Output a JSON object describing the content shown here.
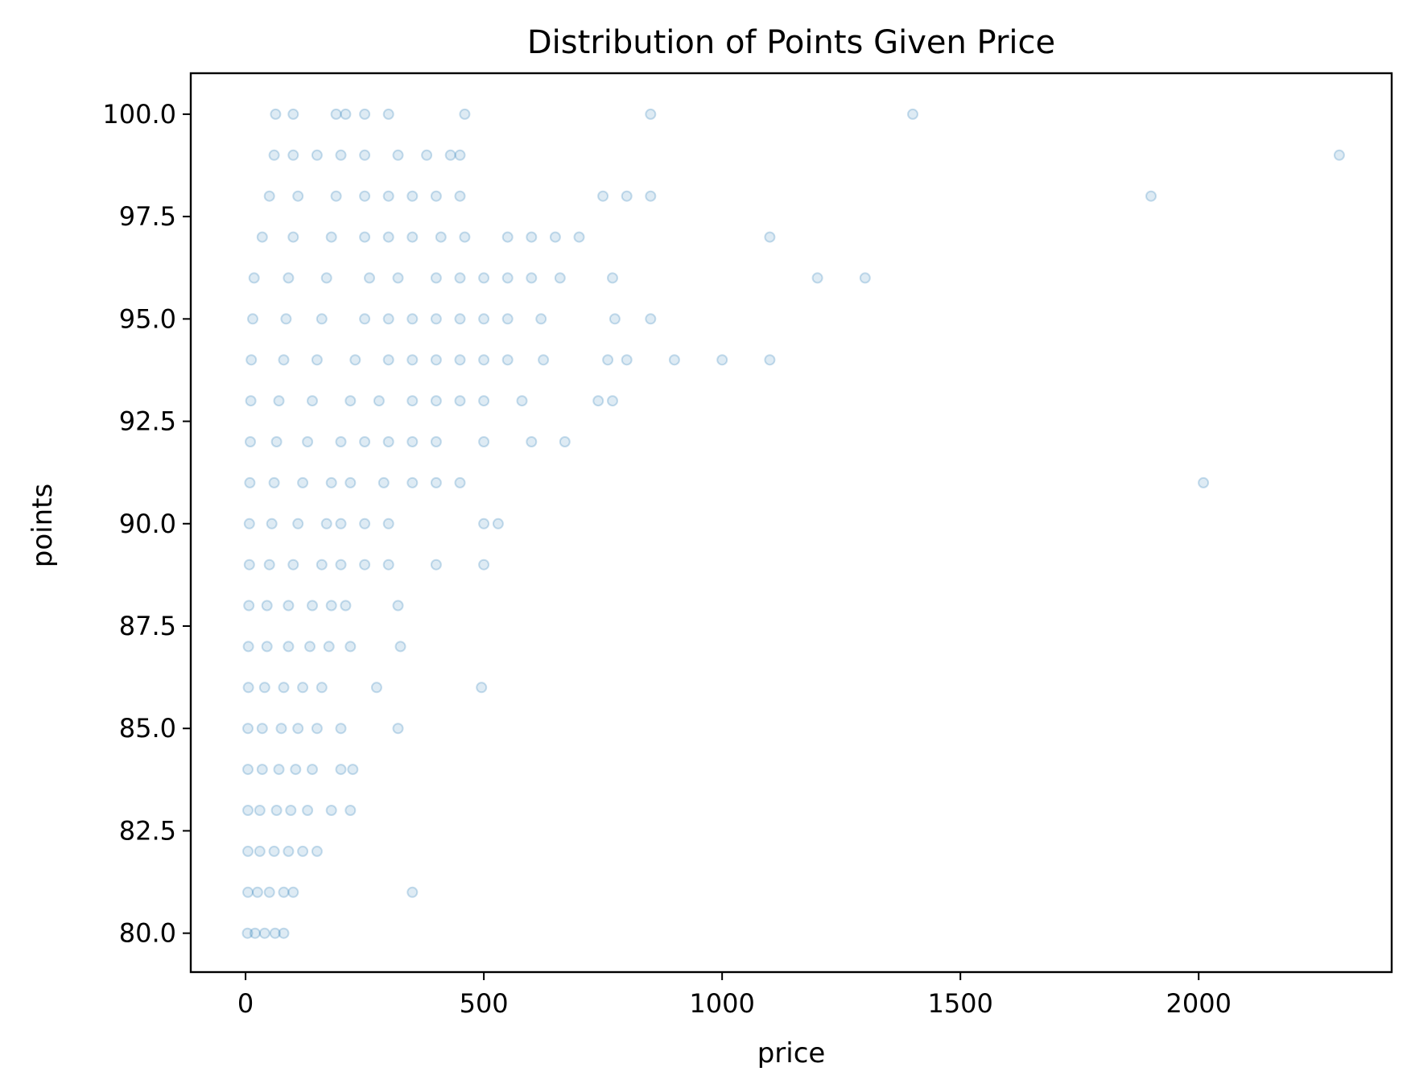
{
  "chart_data": {
    "type": "scatter",
    "title": "Distribution of Points Given Price",
    "xlabel": "price",
    "ylabel": "points",
    "xlim": [
      -115,
      2405
    ],
    "ylim": [
      79.05,
      101.0
    ],
    "x_ticks": [
      0,
      500,
      1000,
      1500,
      2000
    ],
    "y_ticks": [
      80.0,
      82.5,
      85.0,
      87.5,
      90.0,
      92.5,
      95.0,
      97.5,
      100.0
    ],
    "x_tick_labels": [
      "0",
      "500",
      "1000",
      "1500",
      "2000"
    ],
    "y_tick_labels": [
      "80.0",
      "82.5",
      "85.0",
      "87.5",
      "90.0",
      "92.5",
      "95.0",
      "97.5",
      "100.0"
    ],
    "grid": false,
    "marker_color": "#1f77b4",
    "marker_alpha": 0.15,
    "series": [
      {
        "points": [
          [
            4,
            80
          ],
          [
            20,
            80
          ],
          [
            40,
            80
          ],
          [
            62,
            80
          ],
          [
            80,
            80
          ],
          [
            5,
            81
          ],
          [
            25,
            81
          ],
          [
            50,
            81
          ],
          [
            80,
            81
          ],
          [
            100,
            81
          ],
          [
            350,
            81
          ],
          [
            5,
            82
          ],
          [
            30,
            82
          ],
          [
            60,
            82
          ],
          [
            90,
            82
          ],
          [
            120,
            82
          ],
          [
            150,
            82
          ],
          [
            5,
            83
          ],
          [
            30,
            83
          ],
          [
            65,
            83
          ],
          [
            95,
            83
          ],
          [
            130,
            83
          ],
          [
            180,
            83
          ],
          [
            220,
            83
          ],
          [
            5,
            84
          ],
          [
            35,
            84
          ],
          [
            70,
            84
          ],
          [
            105,
            84
          ],
          [
            140,
            84
          ],
          [
            200,
            84
          ],
          [
            225,
            84
          ],
          [
            5,
            85
          ],
          [
            35,
            85
          ],
          [
            75,
            85
          ],
          [
            110,
            85
          ],
          [
            150,
            85
          ],
          [
            200,
            85
          ],
          [
            320,
            85
          ],
          [
            6,
            86
          ],
          [
            40,
            86
          ],
          [
            80,
            86
          ],
          [
            120,
            86
          ],
          [
            160,
            86
          ],
          [
            275,
            86
          ],
          [
            495,
            86
          ],
          [
            6,
            87
          ],
          [
            45,
            87
          ],
          [
            90,
            87
          ],
          [
            135,
            87
          ],
          [
            175,
            87
          ],
          [
            220,
            87
          ],
          [
            325,
            87
          ],
          [
            7,
            88
          ],
          [
            45,
            88
          ],
          [
            90,
            88
          ],
          [
            140,
            88
          ],
          [
            180,
            88
          ],
          [
            210,
            88
          ],
          [
            320,
            88
          ],
          [
            8,
            89
          ],
          [
            50,
            89
          ],
          [
            100,
            89
          ],
          [
            160,
            89
          ],
          [
            200,
            89
          ],
          [
            250,
            89
          ],
          [
            300,
            89
          ],
          [
            400,
            89
          ],
          [
            500,
            89
          ],
          [
            8,
            90
          ],
          [
            55,
            90
          ],
          [
            110,
            90
          ],
          [
            170,
            90
          ],
          [
            200,
            90
          ],
          [
            250,
            90
          ],
          [
            300,
            90
          ],
          [
            500,
            90
          ],
          [
            530,
            90
          ],
          [
            9,
            91
          ],
          [
            60,
            91
          ],
          [
            120,
            91
          ],
          [
            180,
            91
          ],
          [
            220,
            91
          ],
          [
            290,
            91
          ],
          [
            350,
            91
          ],
          [
            400,
            91
          ],
          [
            450,
            91
          ],
          [
            2010,
            91
          ],
          [
            10,
            92
          ],
          [
            65,
            92
          ],
          [
            130,
            92
          ],
          [
            200,
            92
          ],
          [
            250,
            92
          ],
          [
            300,
            92
          ],
          [
            350,
            92
          ],
          [
            400,
            92
          ],
          [
            500,
            92
          ],
          [
            600,
            92
          ],
          [
            670,
            92
          ],
          [
            11,
            93
          ],
          [
            70,
            93
          ],
          [
            140,
            93
          ],
          [
            220,
            93
          ],
          [
            280,
            93
          ],
          [
            350,
            93
          ],
          [
            400,
            93
          ],
          [
            450,
            93
          ],
          [
            500,
            93
          ],
          [
            580,
            93
          ],
          [
            740,
            93
          ],
          [
            770,
            93
          ],
          [
            12,
            94
          ],
          [
            80,
            94
          ],
          [
            150,
            94
          ],
          [
            230,
            94
          ],
          [
            300,
            94
          ],
          [
            350,
            94
          ],
          [
            400,
            94
          ],
          [
            450,
            94
          ],
          [
            500,
            94
          ],
          [
            550,
            94
          ],
          [
            625,
            94
          ],
          [
            760,
            94
          ],
          [
            800,
            94
          ],
          [
            900,
            94
          ],
          [
            1000,
            94
          ],
          [
            1100,
            94
          ],
          [
            15,
            95
          ],
          [
            85,
            95
          ],
          [
            160,
            95
          ],
          [
            250,
            95
          ],
          [
            300,
            95
          ],
          [
            350,
            95
          ],
          [
            400,
            95
          ],
          [
            450,
            95
          ],
          [
            500,
            95
          ],
          [
            550,
            95
          ],
          [
            620,
            95
          ],
          [
            775,
            95
          ],
          [
            850,
            95
          ],
          [
            18,
            96
          ],
          [
            90,
            96
          ],
          [
            170,
            96
          ],
          [
            260,
            96
          ],
          [
            320,
            96
          ],
          [
            400,
            96
          ],
          [
            450,
            96
          ],
          [
            500,
            96
          ],
          [
            550,
            96
          ],
          [
            600,
            96
          ],
          [
            660,
            96
          ],
          [
            770,
            96
          ],
          [
            1200,
            96
          ],
          [
            1300,
            96
          ],
          [
            35,
            97
          ],
          [
            100,
            97
          ],
          [
            180,
            97
          ],
          [
            250,
            97
          ],
          [
            300,
            97
          ],
          [
            350,
            97
          ],
          [
            410,
            97
          ],
          [
            460,
            97
          ],
          [
            550,
            97
          ],
          [
            600,
            97
          ],
          [
            650,
            97
          ],
          [
            700,
            97
          ],
          [
            1100,
            97
          ],
          [
            50,
            98
          ],
          [
            110,
            98
          ],
          [
            190,
            98
          ],
          [
            250,
            98
          ],
          [
            300,
            98
          ],
          [
            350,
            98
          ],
          [
            400,
            98
          ],
          [
            450,
            98
          ],
          [
            750,
            98
          ],
          [
            800,
            98
          ],
          [
            850,
            98
          ],
          [
            1900,
            98
          ],
          [
            60,
            99
          ],
          [
            100,
            99
          ],
          [
            150,
            99
          ],
          [
            200,
            99
          ],
          [
            250,
            99
          ],
          [
            320,
            99
          ],
          [
            380,
            99
          ],
          [
            430,
            99
          ],
          [
            450,
            99
          ],
          [
            2295,
            99
          ],
          [
            63,
            100
          ],
          [
            100,
            100
          ],
          [
            190,
            100
          ],
          [
            210,
            100
          ],
          [
            250,
            100
          ],
          [
            300,
            100
          ],
          [
            460,
            100
          ],
          [
            850,
            100
          ],
          [
            1400,
            100
          ]
        ]
      }
    ]
  }
}
